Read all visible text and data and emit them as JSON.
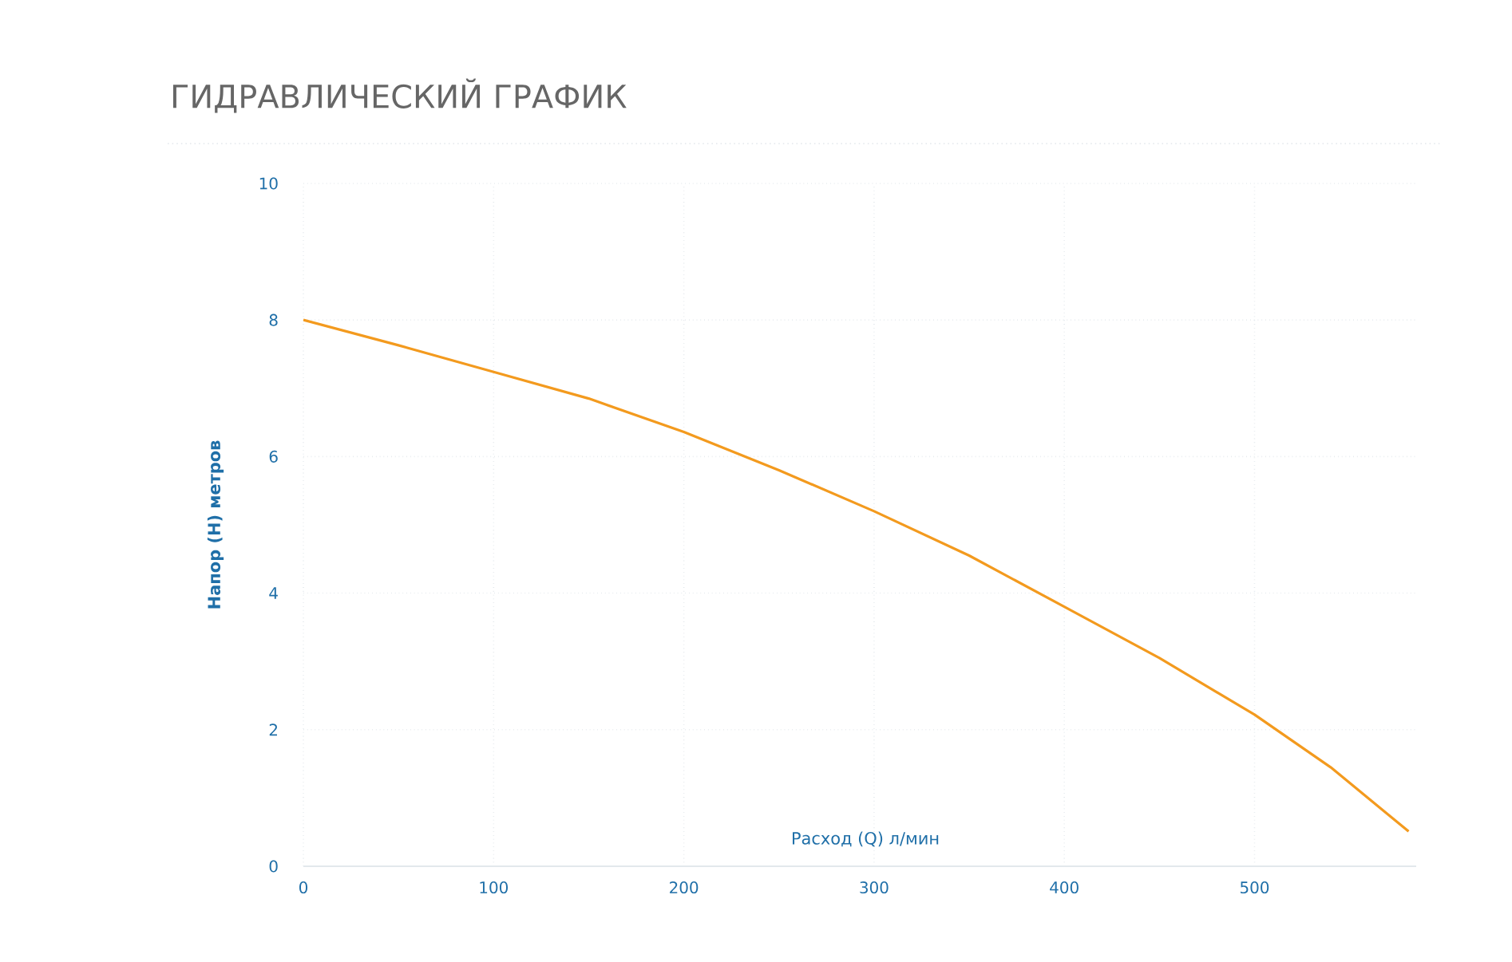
{
  "chart_data": {
    "type": "line",
    "title": "ГИДРАВЛИЧЕСКИЙ ГРАФИК",
    "xlabel": "Расход (Q) л/мин",
    "ylabel": "Напор (H) метров",
    "x": [
      0,
      50,
      100,
      150,
      200,
      250,
      300,
      350,
      400,
      450,
      500,
      540,
      581
    ],
    "series": [
      {
        "color": "#f39a1e",
        "values": [
          8.0,
          7.63,
          7.24,
          6.85,
          6.36,
          5.8,
          5.2,
          4.55,
          3.8,
          3.05,
          2.22,
          1.45,
          0.51
        ]
      }
    ],
    "xlim": [
      0,
      585
    ],
    "ylim": [
      0,
      10
    ],
    "xticks": [
      0,
      100,
      200,
      300,
      400,
      500
    ],
    "yticks": [
      0,
      2,
      4,
      6,
      8,
      10
    ],
    "grid": true,
    "marker": "none",
    "line_style": "solid"
  }
}
